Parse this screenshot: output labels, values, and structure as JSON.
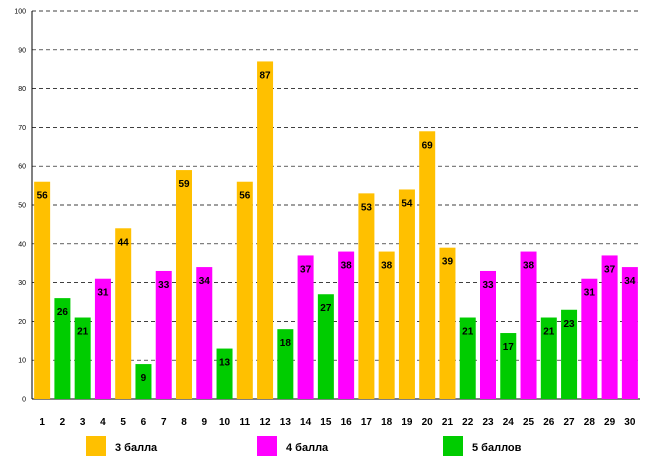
{
  "chart_data": {
    "type": "bar",
    "title": "",
    "xlabel": "",
    "ylabel": "",
    "ylim": [
      0,
      100
    ],
    "yticks": [
      0,
      10,
      20,
      30,
      40,
      50,
      60,
      70,
      80,
      90,
      100
    ],
    "grid": true,
    "categories": [
      "1",
      "2",
      "3",
      "4",
      "5",
      "6",
      "7",
      "8",
      "9",
      "10",
      "11",
      "12",
      "13",
      "14",
      "15",
      "16",
      "17",
      "18",
      "19",
      "20",
      "21",
      "22",
      "23",
      "24",
      "25",
      "26",
      "27",
      "28",
      "29",
      "30"
    ],
    "values": [
      56,
      26,
      21,
      31,
      44,
      9,
      33,
      59,
      34,
      13,
      56,
      87,
      18,
      37,
      27,
      38,
      53,
      38,
      54,
      69,
      39,
      21,
      33,
      17,
      38,
      21,
      23,
      31,
      37,
      34
    ],
    "series_index": [
      0,
      2,
      2,
      1,
      0,
      2,
      1,
      0,
      1,
      2,
      0,
      0,
      2,
      1,
      2,
      1,
      0,
      0,
      0,
      0,
      0,
      2,
      1,
      2,
      1,
      2,
      2,
      1,
      1,
      1
    ],
    "legend_position": "bottom",
    "series": [
      {
        "name": "3 балла",
        "color": "#FFC000"
      },
      {
        "name": "4 балла",
        "color": "#FF00FF"
      },
      {
        "name": "5 баллов",
        "color": "#00CC00"
      }
    ]
  }
}
